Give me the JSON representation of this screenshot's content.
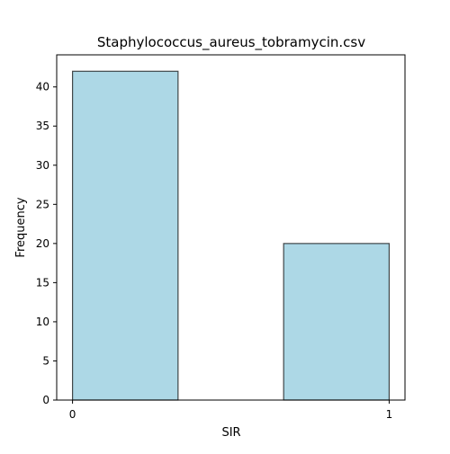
{
  "chart_data": {
    "type": "bar",
    "title": "Staphylococcus_aureus_tobramycin.csv",
    "xlabel": "SIR",
    "ylabel": "Frequency",
    "bins": [
      {
        "x_start": 0,
        "x_end": 0.3333,
        "count": 42
      },
      {
        "x_start": 0.3333,
        "x_end": 0.6667,
        "count": 0
      },
      {
        "x_start": 0.6667,
        "x_end": 1,
        "count": 20
      }
    ],
    "xlim": [
      -0.05,
      1.05
    ],
    "ylim": [
      0,
      44.1
    ],
    "x_ticks": [
      0,
      1
    ],
    "y_ticks": [
      0,
      5,
      10,
      15,
      20,
      25,
      30,
      35,
      40
    ],
    "grid": false,
    "bar_color": "#add8e6",
    "edge_color": "#000000"
  }
}
